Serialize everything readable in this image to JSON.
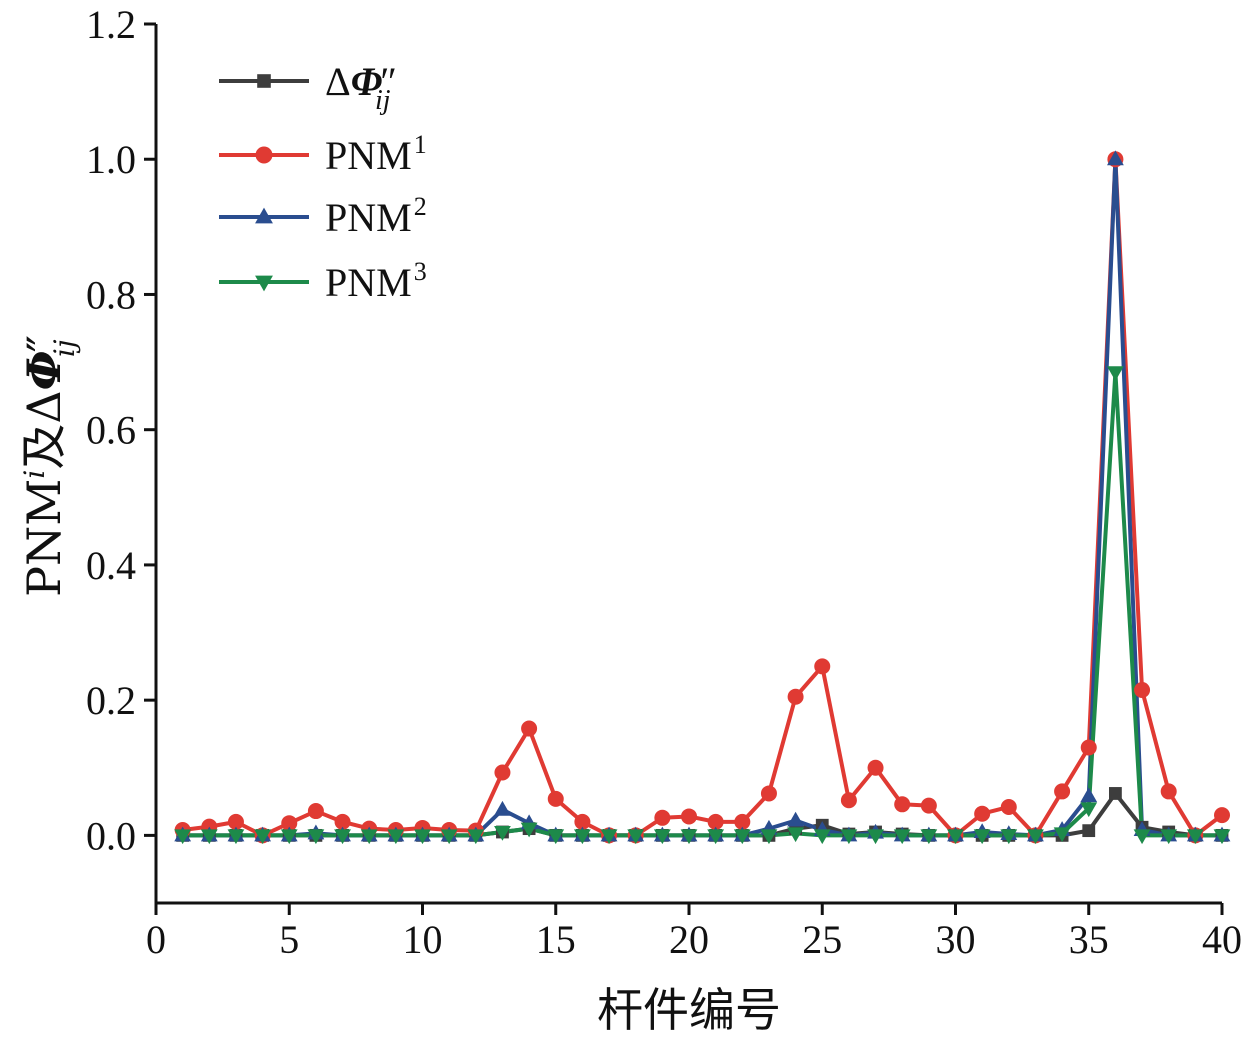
{
  "chart_data": {
    "type": "line",
    "xlabel": "杆件编号",
    "ylabel": {
      "prefix": "PNM",
      "sup": "i",
      "mid": "及Δ",
      "symbol": "Φ",
      "prime": "″",
      "sub": "ij"
    },
    "xlim": [
      0,
      40
    ],
    "ylim": [
      -0.1,
      1.2
    ],
    "xticks": [
      0,
      5,
      10,
      15,
      20,
      25,
      30,
      35,
      40
    ],
    "yticks": [
      0.0,
      0.2,
      0.4,
      0.6,
      0.8,
      1.0,
      1.2
    ],
    "ytick_labels": [
      "0.0",
      "0.2",
      "0.4",
      "0.6",
      "0.8",
      "1.0",
      "1.2"
    ],
    "legend_position": "top-left",
    "x": [
      1,
      2,
      3,
      4,
      5,
      6,
      7,
      8,
      9,
      10,
      11,
      12,
      13,
      14,
      15,
      16,
      17,
      18,
      19,
      20,
      21,
      22,
      23,
      24,
      25,
      26,
      27,
      28,
      29,
      30,
      31,
      32,
      33,
      34,
      35,
      36,
      37,
      38,
      39,
      40
    ],
    "series": [
      {
        "name": "ΔΦ″ij",
        "legend": {
          "main": "Δ",
          "symbol": "Φ",
          "prime": "″",
          "sub": "ij"
        },
        "color": "#3d3d3d",
        "marker": "square",
        "values": [
          0.0,
          0.0,
          0.0,
          0.0,
          0.0,
          0.0,
          0.0,
          0.0,
          0.0,
          0.0,
          0.0,
          0.0,
          0.005,
          0.01,
          0.0,
          0.0,
          0.0,
          0.0,
          0.0,
          0.0,
          0.0,
          0.0,
          0.0,
          0.01,
          0.015,
          0.002,
          0.005,
          0.002,
          0.0,
          0.0,
          0.0,
          0.0,
          0.0,
          0.0,
          0.007,
          0.062,
          0.012,
          0.005,
          0.0,
          0.0
        ]
      },
      {
        "name": "PNM1",
        "legend": {
          "main": "PNM",
          "sup": "1"
        },
        "color": "#e03a33",
        "marker": "circle",
        "values": [
          0.008,
          0.013,
          0.02,
          0.0,
          0.018,
          0.036,
          0.02,
          0.01,
          0.008,
          0.011,
          0.008,
          0.007,
          0.093,
          0.158,
          0.054,
          0.02,
          0.0,
          0.0,
          0.026,
          0.028,
          0.02,
          0.02,
          0.062,
          0.205,
          0.25,
          0.052,
          0.1,
          0.046,
          0.044,
          0.0,
          0.032,
          0.042,
          0.0,
          0.065,
          0.13,
          1.0,
          0.215,
          0.065,
          0.0,
          0.03
        ]
      },
      {
        "name": "PNM2",
        "legend": {
          "main": "PNM",
          "sup": "2"
        },
        "color": "#2a4d8f",
        "marker": "triangle-up",
        "values": [
          0.0,
          0.0,
          0.0,
          0.0,
          0.0,
          0.003,
          0.0,
          0.0,
          0.0,
          0.0,
          0.0,
          0.0,
          0.038,
          0.018,
          0.0,
          0.0,
          0.0,
          0.0,
          0.0,
          0.0,
          0.0,
          0.0,
          0.01,
          0.022,
          0.008,
          0.0,
          0.004,
          0.0,
          0.0,
          0.0,
          0.005,
          0.002,
          0.0,
          0.008,
          0.058,
          1.0,
          0.008,
          0.0,
          0.0,
          0.0
        ]
      },
      {
        "name": "PNM3",
        "legend": {
          "main": "PNM",
          "sup": "3"
        },
        "color": "#1d8a4a",
        "marker": "triangle-down",
        "values": [
          0.0,
          0.0,
          0.0,
          0.0,
          0.0,
          0.0,
          0.0,
          0.0,
          0.0,
          0.0,
          0.0,
          0.0,
          0.005,
          0.01,
          0.0,
          0.0,
          0.0,
          0.0,
          0.0,
          0.0,
          0.0,
          0.0,
          0.0,
          0.003,
          0.0,
          0.0,
          0.0,
          0.0,
          0.0,
          0.0,
          0.0,
          0.0,
          0.0,
          0.003,
          0.04,
          0.685,
          0.0,
          0.0,
          0.0,
          0.0
        ]
      }
    ]
  }
}
